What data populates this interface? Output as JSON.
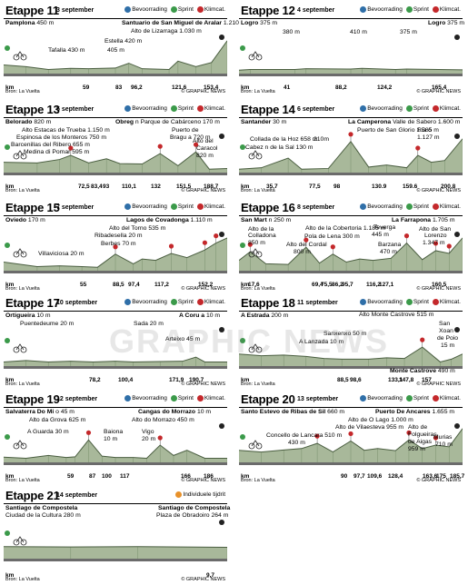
{
  "colors": {
    "climb": "#2f6fa8",
    "sprint": "#3b9a4a",
    "klim": "#c4282b",
    "itt": "#e8912a",
    "fill": "#a8b89a",
    "fillDark": "#6f8662"
  },
  "legend": {
    "bevoorrading": "Bevoorrading",
    "sprint": "Sprint",
    "klimcat": "Klimcat.",
    "itt": "Individuele tijdrit"
  },
  "source": "Bron: La Vuelta",
  "credit": "© GRAPHIC NEWS",
  "watermark": "GRAPHIC NEWS",
  "km_label": "km",
  "stages": [
    {
      "title": "Etappe 11",
      "date": "3 september",
      "labels": [
        {
          "t": "Pamplona",
          "b": true,
          "s": " 450 m"
        },
        {
          "t": "Santuario de San Miguel de Aralar",
          "b": true,
          "s": " 1.210 m"
        },
        {
          "t": "Alto de Lizarraga",
          "s": " 1.030 m"
        },
        {
          "t": "Estella",
          "s": " 420 m"
        },
        {
          "t": "405 m"
        },
        {
          "t": "Tafalla",
          "s": " 430 m"
        }
      ],
      "km": [
        "59",
        "83",
        "96,2",
        "121,6",
        "153,4"
      ]
    },
    {
      "title": "Etappe 12",
      "date": "4 september",
      "labels": [
        {
          "t": "Logro",
          "b": true,
          "s": " 375 m"
        },
        {
          "t": "Logro",
          "b": true,
          "s": " 375 m"
        },
        {
          "t": "380 m"
        },
        {
          "t": "410 m"
        },
        {
          "t": "375 m"
        }
      ],
      "km": [
        "41",
        "88,2",
        "124,2",
        "165,4"
      ]
    },
    {
      "title": "Etappe 13",
      "date": "5 september",
      "labels": [
        {
          "t": "Belorado",
          "b": true,
          "s": " 820 m"
        },
        {
          "t": "Obreg",
          "b": true,
          "s": " n Parque de Cabárceno 170 m"
        },
        {
          "t": "Alto Estacas de Trueba",
          "s": " 1.150 m"
        },
        {
          "t": "Espinosa de los Monteros",
          "s": " 750 m"
        },
        {
          "t": "Barcenillas del Ribero",
          "s": " 655 m"
        },
        {
          "t": "Medina di Pomar",
          "s": " 595 m"
        },
        {
          "t": "Puerto de"
        },
        {
          "t": "Bragu a",
          "s": " 720 m"
        },
        {
          "t": "Alto del"
        },
        {
          "t": "Caracol"
        },
        {
          "t": "820 m"
        }
      ],
      "km": [
        "72,5",
        "83,4",
        "93",
        "110,1",
        "132",
        "151,5",
        "188,7"
      ]
    },
    {
      "title": "Etappe 14",
      "date": "6 september",
      "labels": [
        {
          "t": "Santander",
          "b": true,
          "s": " 30 m"
        },
        {
          "t": "La Camperona",
          "b": true,
          "s": " Valle de Sabero 1.600 m"
        },
        {
          "t": "Puerto de San Glorio",
          "s": " 1.585 m"
        },
        {
          "t": "Collada de la Hoz",
          "s": " 658 m"
        },
        {
          "t": "Cabez",
          "s": " n de la Sal 130 m"
        },
        {
          "t": "210m"
        },
        {
          "t": "Ria  o"
        },
        {
          "t": "1.127 m"
        }
      ],
      "km": [
        "35,7",
        "77,5",
        "98",
        "130.9",
        "159.6",
        "200.8"
      ]
    },
    {
      "title": "Etappe 15",
      "date": "7 september",
      "labels": [
        {
          "t": "Oviedo",
          "b": true,
          "s": " 170 m"
        },
        {
          "t": "Lagos de Covadonga",
          "b": true,
          "s": " 1.110 m"
        },
        {
          "t": "Alto del Torno",
          "s": " 535 m"
        },
        {
          "t": "Ribadesella",
          "s": " 20 m"
        },
        {
          "t": "Berbes",
          "s": " 70 m"
        },
        {
          "t": "Villaviciosa",
          "s": " 20 m"
        }
      ],
      "km": [
        "55",
        "88,5",
        "97,4",
        "117,2",
        "152,2"
      ]
    },
    {
      "title": "Etappe 16",
      "date": "8 september",
      "labels": [
        {
          "t": "San Mart",
          "b": true,
          "s": " n 250 m"
        },
        {
          "t": "La Farrapona",
          "b": true,
          "s": " 1.705 m"
        },
        {
          "t": "Alto de la Cobertoria",
          "s": " 1.185 m"
        },
        {
          "t": "Pola de Lena",
          "s": " 300 m"
        },
        {
          "t": "Alto del Cordal"
        },
        {
          "t": "800 m"
        },
        {
          "t": "Teverga"
        },
        {
          "t": "445 m"
        },
        {
          "t": "Barzana"
        },
        {
          "t": "470 m"
        },
        {
          "t": "Alto de San"
        },
        {
          "t": "Lorenzo"
        },
        {
          "t": "1.347 m"
        },
        {
          "t": "Alto de la"
        },
        {
          "t": "Colladona"
        },
        {
          "t": "850 m"
        }
      ],
      "km": [
        "17,6",
        "69,4",
        "75,5",
        "86,2",
        "95,7",
        "116,2",
        "127,1",
        "160,5"
      ]
    },
    {
      "title": "Etappe 17",
      "date": "10 september",
      "labels": [
        {
          "t": "Ortigueira",
          "b": true,
          "s": " 10 m"
        },
        {
          "t": "A Coru  a",
          "b": true,
          "s": " 10 m"
        },
        {
          "t": "Puentedeume",
          "s": " 20 m"
        },
        {
          "t": "Sada",
          "s": " 20 m"
        },
        {
          "t": "Arteixo",
          "s": " 45 m"
        }
      ],
      "km": [
        "78,2",
        "100,4",
        "171,9",
        "190,7"
      ]
    },
    {
      "title": "Etappe 18",
      "date": "11 september",
      "labels": [
        {
          "t": "A Estrada",
          "b": true,
          "s": " 200 m"
        },
        {
          "t": "Monte Castrove",
          "b": true,
          "s": " 490 m"
        },
        {
          "t": "Alto Monte Castrove",
          "s": " 515 m"
        },
        {
          "t": "Sanxenxo",
          "s": " 50 m"
        },
        {
          "t": "A Lanzada",
          "s": " 10 m"
        },
        {
          "t": "San"
        },
        {
          "t": "Xoan"
        },
        {
          "t": "de Poio"
        },
        {
          "t": "15 m"
        }
      ],
      "km": [
        "88,5",
        "98,6",
        "133,1",
        "147,8",
        "157"
      ]
    },
    {
      "title": "Etappe 19",
      "date": "12 september",
      "labels": [
        {
          "t": "Salvaterra Do Mi",
          "b": true,
          "s": " o 45 m"
        },
        {
          "t": "Cangas do Morrazo",
          "b": true,
          "s": " 10 m"
        },
        {
          "t": "Alto da Grova",
          "s": " 625 m"
        },
        {
          "t": "Alto do Morrazo",
          "s": " 450 m"
        },
        {
          "t": "A Guarda",
          "s": " 30 m"
        },
        {
          "t": "Baiona"
        },
        {
          "t": "10 m"
        },
        {
          "t": "Vigo"
        },
        {
          "t": "20 m"
        }
      ],
      "km": [
        "59",
        "87",
        "100",
        "117",
        "166",
        "186"
      ]
    },
    {
      "title": "Etappe 20",
      "date": "13 september",
      "labels": [
        {
          "t": "Santo Estevo de Ribas de Sil",
          "b": true,
          "s": " 660 m"
        },
        {
          "t": "Puerto De Ancares",
          "b": true,
          "s": " 1.655 m"
        },
        {
          "t": "Alto de O Lago",
          "s": " 1.000 m"
        },
        {
          "t": "Alto de Vilaesteva",
          "s": " 955 m"
        },
        {
          "t": "Concello de Lancara",
          "s": " 510 m"
        },
        {
          "t": "430 m"
        },
        {
          "t": "Alto de"
        },
        {
          "t": "Folgueiras"
        },
        {
          "t": "de Aigas"
        },
        {
          "t": "959 m"
        },
        {
          "t": "Murias"
        },
        {
          "t": "710 m"
        }
      ],
      "km": [
        "90",
        "97,7",
        "109,6",
        "128,4",
        "163,6",
        "175",
        "185,7"
      ]
    },
    {
      "title": "Etappe 21",
      "date": "14 september",
      "labels": [
        {
          "t": "Santiago de Compostela",
          "b": true
        },
        {
          "t": "Ciudad de la Cultura",
          "s": " 280 m"
        },
        {
          "t": "Santiago de Compostela",
          "b": true
        },
        {
          "t": "Plaza de Obradoiro",
          "s": " 264 m"
        }
      ],
      "km": [
        "9,7"
      ]
    }
  ]
}
